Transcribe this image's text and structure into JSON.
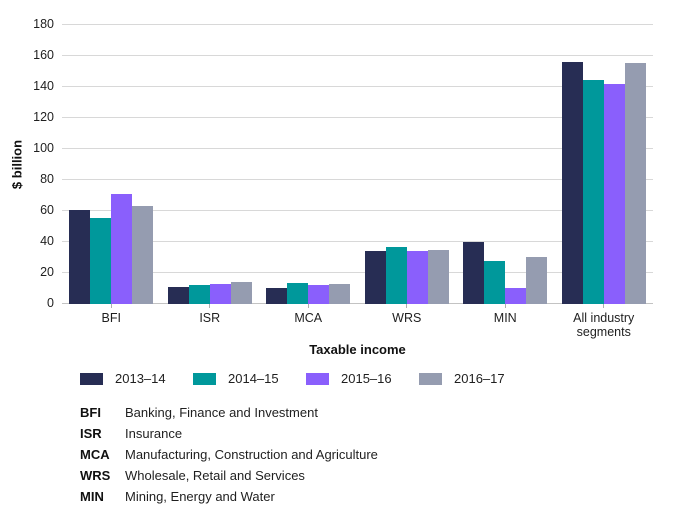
{
  "chart_data": {
    "type": "bar",
    "title": "",
    "ylabel": "$ billion",
    "xlabel": "Taxable income",
    "ylim": [
      0,
      180
    ],
    "ytick_step": 20,
    "grid": true,
    "legend_position": "bottom",
    "categories": [
      "BFI",
      "ISR",
      "MCA",
      "WRS",
      "MIN",
      "All industry segments"
    ],
    "series": [
      {
        "name": "2013–14",
        "color": "#272D54",
        "values": [
          60.5,
          11,
          10,
          34.5,
          40,
          156
        ]
      },
      {
        "name": "2014–15",
        "color": "#00989B",
        "values": [
          55.5,
          12,
          13.5,
          36.5,
          27.5,
          144.5
        ]
      },
      {
        "name": "2015–16",
        "color": "#8A5FFC",
        "values": [
          71,
          13,
          12,
          34.5,
          10.5,
          142
        ]
      },
      {
        "name": "2016–17",
        "color": "#959CB0",
        "values": [
          63,
          14,
          13,
          35,
          30.5,
          155.5
        ]
      }
    ]
  },
  "footnotes": [
    {
      "abbr": "BFI",
      "text": "Banking, Finance and Investment"
    },
    {
      "abbr": "ISR",
      "text": "Insurance"
    },
    {
      "abbr": "MCA",
      "text": "Manufacturing, Construction and Agriculture"
    },
    {
      "abbr": "WRS",
      "text": "Wholesale, Retail and Services"
    },
    {
      "abbr": "MIN",
      "text": "Mining, Energy and Water"
    }
  ]
}
